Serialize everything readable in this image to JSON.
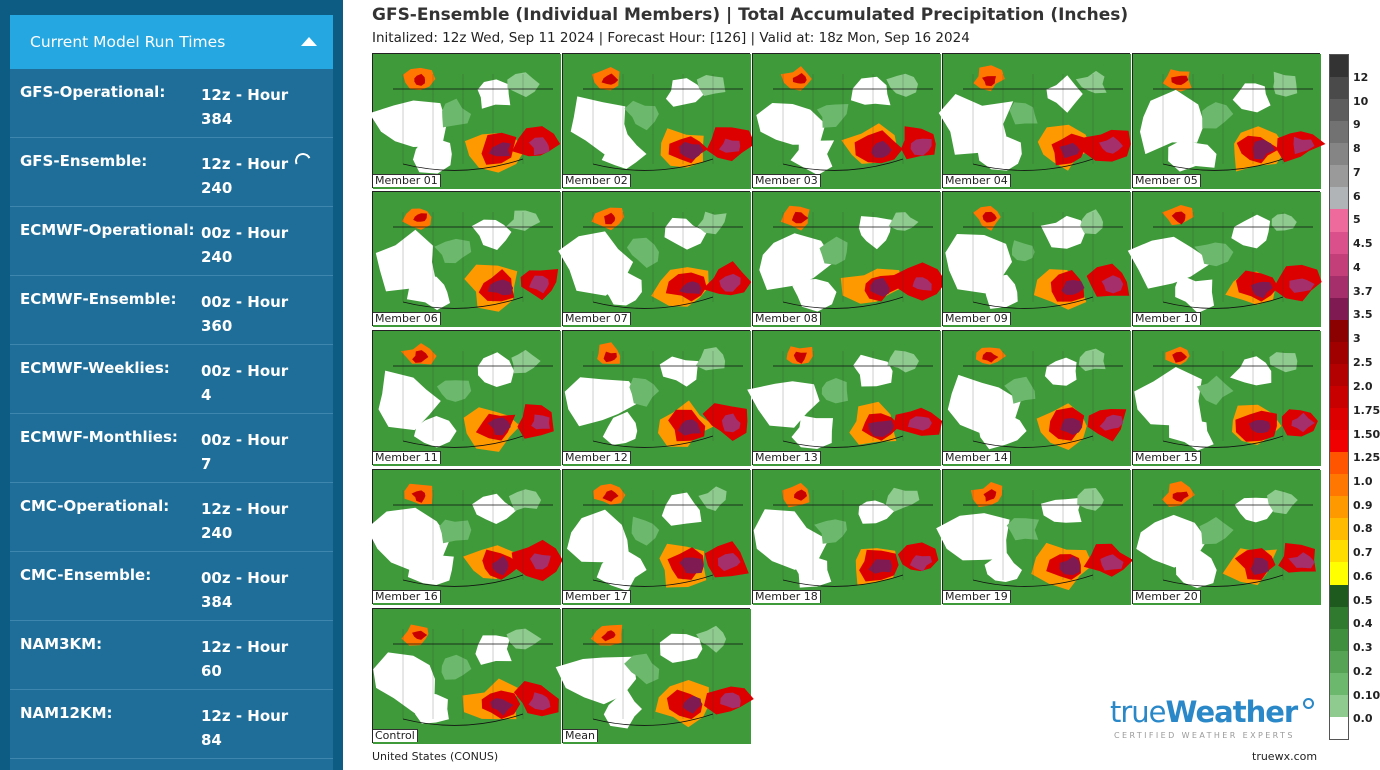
{
  "sidebar": {
    "header": "Current Model Run Times",
    "models": [
      {
        "name": "GFS-Operational:",
        "value": "12z - Hour 384"
      },
      {
        "name": "GFS-Ensemble:",
        "value": "12z - Hour 240",
        "loading": true
      },
      {
        "name": "ECMWF-Operational:",
        "value": "00z - Hour 240"
      },
      {
        "name": "ECMWF-Ensemble:",
        "value": "00z - Hour 360"
      },
      {
        "name": "ECMWF-Weeklies:",
        "value": "00z - Hour 4"
      },
      {
        "name": "ECMWF-Monthlies:",
        "value": "00z - Hour 7"
      },
      {
        "name": "CMC-Operational:",
        "value": "12z - Hour 240"
      },
      {
        "name": "CMC-Ensemble:",
        "value": "00z - Hour 384"
      },
      {
        "name": "NAM3KM:",
        "value": "12z - Hour 60"
      },
      {
        "name": "NAM12KM:",
        "value": "12z - Hour 84"
      }
    ]
  },
  "map": {
    "title": "GFS-Ensemble (Individual Members) | Total Accumulated Precipitation (Inches)",
    "subtitle": "Initalized: 12z Wed, Sep 11 2024  |  Forecast Hour: [126]  |  Valid at: 18z Mon, Sep 16 2024",
    "panels": [
      "Member 01",
      "Member 02",
      "Member 03",
      "Member 04",
      "Member 05",
      "Member 06",
      "Member 07",
      "Member 08",
      "Member 09",
      "Member 10",
      "Member 11",
      "Member 12",
      "Member 13",
      "Member 14",
      "Member 15",
      "Member 16",
      "Member 17",
      "Member 18",
      "Member 19",
      "Member 20",
      "Control",
      "Mean"
    ],
    "region": "United States (CONUS)",
    "credit": "truewx.com"
  },
  "logo": {
    "word_light": "true",
    "word_bold": "Weather",
    "tagline": "CERTIFIED WEATHER EXPERTS"
  },
  "colorbar": {
    "labels": [
      "12",
      "10",
      "9",
      "8",
      "7",
      "6",
      "5",
      "4.5",
      "4",
      "3.7",
      "3.5",
      "3",
      "2.5",
      "2.0",
      "1.75",
      "1.50",
      "1.25",
      "1.0",
      "0.9",
      "0.8",
      "0.7",
      "0.6",
      "0.5",
      "0.4",
      "0.3",
      "0.2",
      "0.10",
      "0.0"
    ],
    "colors": [
      "#333333",
      "#4a4a4a",
      "#5e5e5e",
      "#727272",
      "#858585",
      "#9a9a9a",
      "#b0b4b6",
      "#ef6a9c",
      "#d9508a",
      "#c23f7a",
      "#a42f6a",
      "#7f1a52",
      "#8b0000",
      "#a00000",
      "#b30000",
      "#c80000",
      "#dd0000",
      "#f00000",
      "#ff5500",
      "#ff7700",
      "#ff9900",
      "#ffbb00",
      "#ffdd00",
      "#ffff00",
      "#1e5a1e",
      "#2f7a2f",
      "#3f8f3f",
      "#56a356",
      "#6cb86c",
      "#8fcb8f",
      "#ffffff"
    ]
  }
}
